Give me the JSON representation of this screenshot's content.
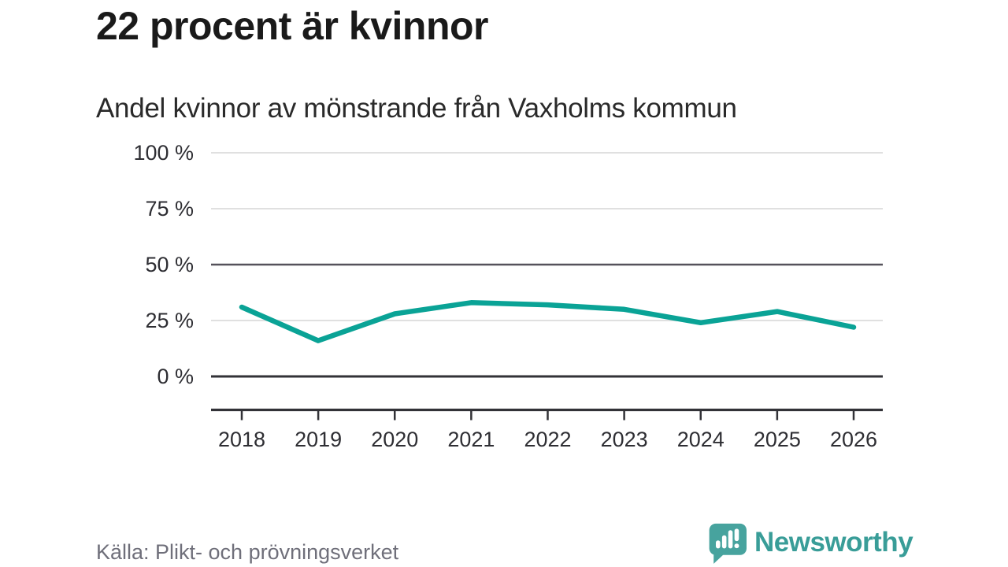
{
  "header": {
    "title": "22 procent är kvinnor",
    "subtitle": "Andel kvinnor av mönstrande från Vaxholms kommun"
  },
  "chart_data": {
    "type": "line",
    "title": "22 procent är kvinnor",
    "subtitle": "Andel kvinnor av mönstrande från Vaxholms kommun",
    "categories": [
      "2018",
      "2019",
      "2020",
      "2021",
      "2022",
      "2023",
      "2024",
      "2025",
      "2026"
    ],
    "series": [
      {
        "name": "Andel kvinnor av mönstrande",
        "values": [
          31,
          16,
          28,
          33,
          32,
          30,
          24,
          29,
          22
        ]
      }
    ],
    "unit": "%",
    "ylim": [
      0,
      100
    ],
    "yticks": [
      {
        "value": 100,
        "label": "100 %",
        "style": "light"
      },
      {
        "value": 75,
        "label": "75 %",
        "style": "light"
      },
      {
        "value": 50,
        "label": "50 %",
        "style": "medium"
      },
      {
        "value": 25,
        "label": "25 %",
        "style": "light"
      },
      {
        "value": 0,
        "label": "0 %",
        "style": "strong"
      }
    ],
    "grid": "horizontal",
    "legend": "none",
    "style": {
      "line_color": "#0aa396",
      "grid_color": "#e0e0e0",
      "grid_medium_color": "#55525b",
      "axis_color": "#323237",
      "tick_label_color": "#2e2e33"
    }
  },
  "footer": {
    "source": "Källa: Plikt- och prövningsverket",
    "brand": "Newsworthy",
    "brand_color": "#399d98",
    "logo_color": "#47a39e"
  }
}
